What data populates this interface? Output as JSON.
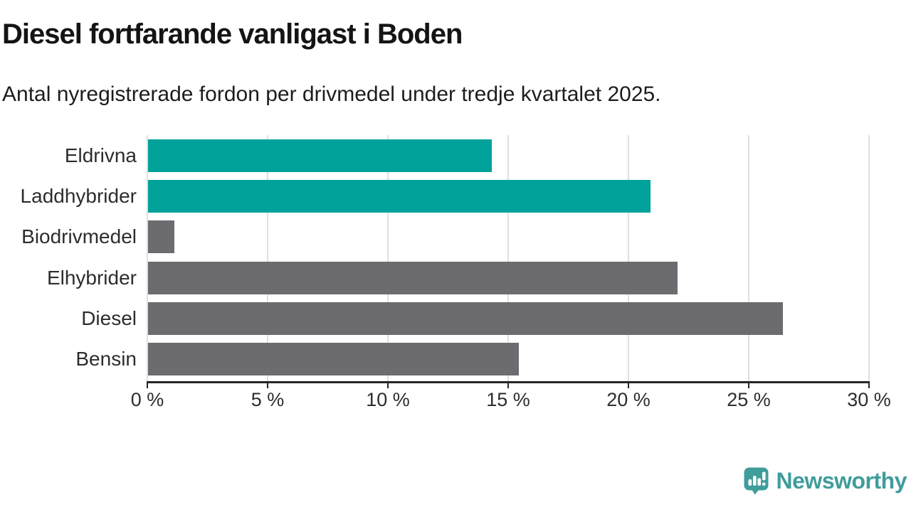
{
  "header": {
    "title": "Diesel fortfarande vanligast i Boden",
    "subtitle": "Antal nyregistrerade fordon per drivmedel under tredje kvartalet 2025."
  },
  "chart_data": {
    "type": "bar",
    "orientation": "horizontal",
    "title": "Diesel fortfarande vanligast i Boden",
    "subtitle": "Antal nyregistrerade fordon per drivmedel under tredje kvartalet 2025.",
    "categories": [
      "Eldrivna",
      "Laddhybrider",
      "Biodrivmedel",
      "Elhybrider",
      "Diesel",
      "Bensin"
    ],
    "values": [
      14.3,
      20.9,
      1.1,
      22.0,
      26.4,
      15.4
    ],
    "value_unit": "%",
    "xlim": [
      0,
      30
    ],
    "x_ticks": [
      0,
      5,
      10,
      15,
      20,
      25,
      30
    ],
    "x_tick_suffix": " %",
    "bar_colors": [
      "#00a29a",
      "#00a29a",
      "#6b6b70",
      "#6b6b70",
      "#6b6b70",
      "#6b6b70"
    ],
    "colors": {
      "highlight": "#00a29a",
      "default": "#6b6b70",
      "gridline": "#e0e0e0",
      "axis": "#262626"
    },
    "grid": "vertical",
    "legend_position": "none"
  },
  "footer": {
    "brand": "Newsworthy",
    "brand_color": "#3f9d9b"
  }
}
